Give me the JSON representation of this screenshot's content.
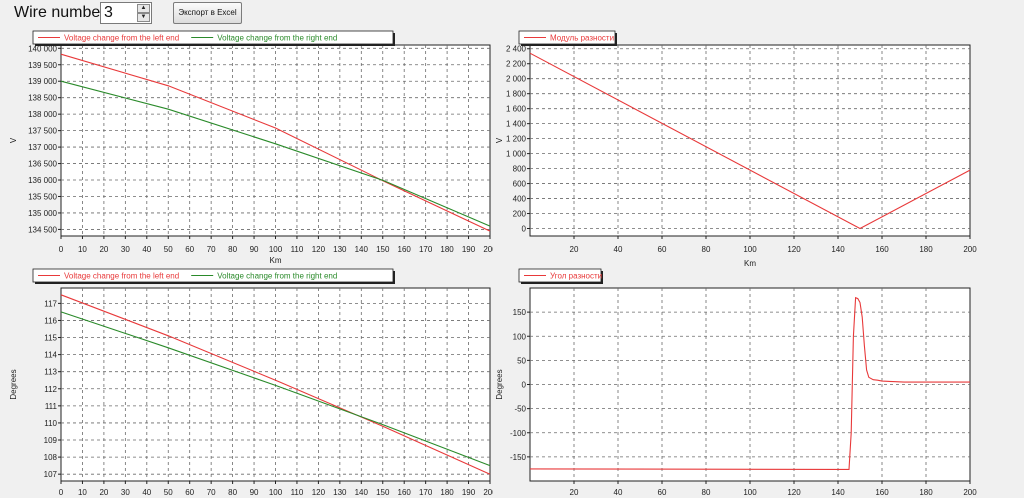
{
  "toolbar": {
    "wire_label": "Wire number:",
    "wire_value": "3",
    "export_button": "Экспорт в Excel"
  },
  "colors": {
    "red": "#e8393a",
    "green": "#2a8a2a",
    "grid": "#6a6a6a"
  },
  "chart_data": [
    {
      "type": "line",
      "legend": [
        "Voltage change from the left end",
        "Voltage change from the right end"
      ],
      "xlabel": "Km",
      "ylabel": "V",
      "xlim": [
        0,
        200
      ],
      "ylim": [
        134300,
        140100
      ],
      "xticks": [
        "0",
        "10",
        "20",
        "30",
        "40",
        "50",
        "60",
        "70",
        "80",
        "90",
        "100",
        "110",
        "120",
        "130",
        "140",
        "150",
        "160",
        "170",
        "180",
        "190",
        "200"
      ],
      "yticks": [
        "134 500",
        "135 000",
        "135 500",
        "136 000",
        "136 500",
        "137 000",
        "137 500",
        "138 000",
        "138 500",
        "139 000",
        "139 500",
        "140 000"
      ],
      "series": [
        {
          "name": "Voltage change from the left end",
          "color": "red",
          "x": [
            0,
            50,
            100,
            150,
            200
          ],
          "y": [
            139820,
            138860,
            137580,
            135980,
            134450
          ]
        },
        {
          "name": "Voltage change from the right end",
          "color": "green",
          "x": [
            0,
            50,
            100,
            150,
            200
          ],
          "y": [
            139000,
            138150,
            137100,
            135990,
            134600
          ]
        }
      ]
    },
    {
      "type": "line",
      "legend": [
        "Модуль разности"
      ],
      "xlabel": "Km",
      "ylabel": "V",
      "xlim": [
        0,
        200
      ],
      "ylim": [
        -100,
        2450
      ],
      "xticks": [
        "20",
        "40",
        "60",
        "80",
        "100",
        "120",
        "140",
        "160",
        "180",
        "200"
      ],
      "yticks": [
        "0",
        "200",
        "400",
        "600",
        "800",
        "1 000",
        "1 200",
        "1 400",
        "1 600",
        "1 800",
        "2 000",
        "2 200",
        "2 400"
      ],
      "series": [
        {
          "name": "Модуль разности",
          "color": "red",
          "x": [
            0,
            150,
            200
          ],
          "y": [
            2340,
            0,
            780
          ]
        }
      ]
    },
    {
      "type": "line",
      "legend": [
        "Voltage change from the left end",
        "Voltage change from the right end"
      ],
      "xlabel": "",
      "ylabel": "Degrees",
      "xlim": [
        0,
        200
      ],
      "ylim": [
        106.6,
        117.9
      ],
      "xticks": [
        "0",
        "10",
        "20",
        "30",
        "40",
        "50",
        "60",
        "70",
        "80",
        "90",
        "100",
        "110",
        "120",
        "130",
        "140",
        "150",
        "160",
        "170",
        "180",
        "190",
        "200"
      ],
      "yticks": [
        "107",
        "108",
        "109",
        "110",
        "111",
        "112",
        "113",
        "114",
        "115",
        "116",
        "117"
      ],
      "series": [
        {
          "name": "Voltage change from the left end",
          "color": "red",
          "x": [
            0,
            50,
            100,
            150,
            200
          ],
          "y": [
            117.5,
            115.1,
            112.5,
            109.8,
            107.0
          ]
        },
        {
          "name": "Voltage change from the right end",
          "color": "green",
          "x": [
            0,
            50,
            100,
            150,
            200
          ],
          "y": [
            116.5,
            114.4,
            112.2,
            109.9,
            107.5
          ]
        }
      ]
    },
    {
      "type": "line",
      "legend": [
        "Угол разности"
      ],
      "xlabel": "",
      "ylabel": "Degrees",
      "xlim": [
        0,
        200
      ],
      "ylim": [
        -200,
        200
      ],
      "xticks": [
        "20",
        "40",
        "60",
        "80",
        "100",
        "120",
        "140",
        "160",
        "180",
        "200"
      ],
      "yticks": [
        "-150",
        "-100",
        "-50",
        "0",
        "50",
        "100",
        "150"
      ],
      "series": [
        {
          "name": "Угол разности",
          "color": "red",
          "x": [
            0,
            140,
            145,
            146,
            147,
            148,
            149,
            150,
            151,
            152,
            153,
            154,
            156,
            158,
            160,
            165,
            170,
            200
          ],
          "y": [
            -175,
            -176,
            -176,
            -100,
            100,
            180,
            178,
            170,
            140,
            80,
            30,
            15,
            10,
            9,
            7,
            6,
            5,
            5
          ]
        }
      ]
    }
  ]
}
